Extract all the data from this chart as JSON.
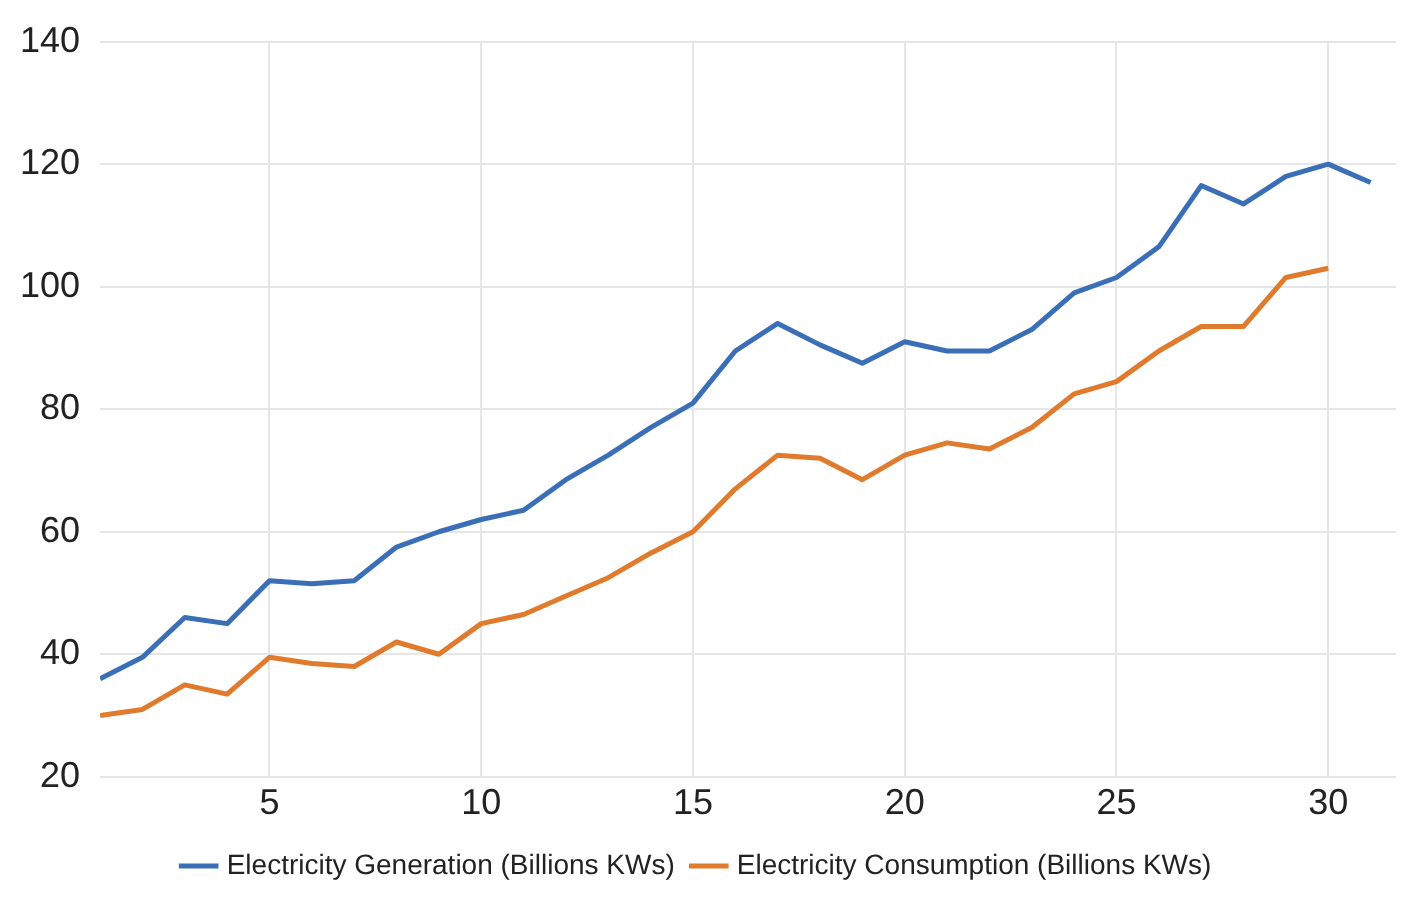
{
  "chart_data": {
    "type": "line",
    "x": [
      1,
      2,
      3,
      4,
      5,
      6,
      7,
      8,
      9,
      10,
      11,
      12,
      13,
      14,
      15,
      16,
      17,
      18,
      19,
      20,
      21,
      22,
      23,
      24,
      25,
      26,
      27,
      28,
      29,
      30,
      31
    ],
    "series": [
      {
        "name": "Electricity Generation (Billions KWs)",
        "color": "#3a6fb7",
        "values": [
          36,
          39.5,
          46,
          45,
          52,
          51.5,
          52,
          57.5,
          60,
          62,
          63.5,
          68.5,
          72.5,
          77,
          81,
          89.5,
          94,
          90.5,
          87.5,
          91,
          89.5,
          89.5,
          93,
          99,
          101.5,
          106.5,
          116.5,
          113.5,
          118,
          120,
          117
        ]
      },
      {
        "name": "Electricity Consumption (Billions KWs)",
        "color": "#e07b2e",
        "values": [
          30,
          31,
          35,
          33.5,
          39.5,
          38.5,
          38,
          42,
          40,
          45,
          46.5,
          49.5,
          52.5,
          56.5,
          60,
          67,
          72.5,
          72,
          68.5,
          72.5,
          74.5,
          73.5,
          77,
          82.5,
          84.5,
          89.5,
          93.5,
          93.5,
          101.5,
          103,
          null
        ]
      }
    ],
    "xlim": [
      1,
      31.6
    ],
    "xticks": [
      5,
      10,
      15,
      20,
      25,
      30
    ],
    "ylim": [
      20,
      140
    ],
    "yticks": [
      20,
      40,
      60,
      80,
      100,
      120,
      140
    ],
    "grid": true,
    "legend": "bottom",
    "marker": "none",
    "line_style": "solid"
  }
}
